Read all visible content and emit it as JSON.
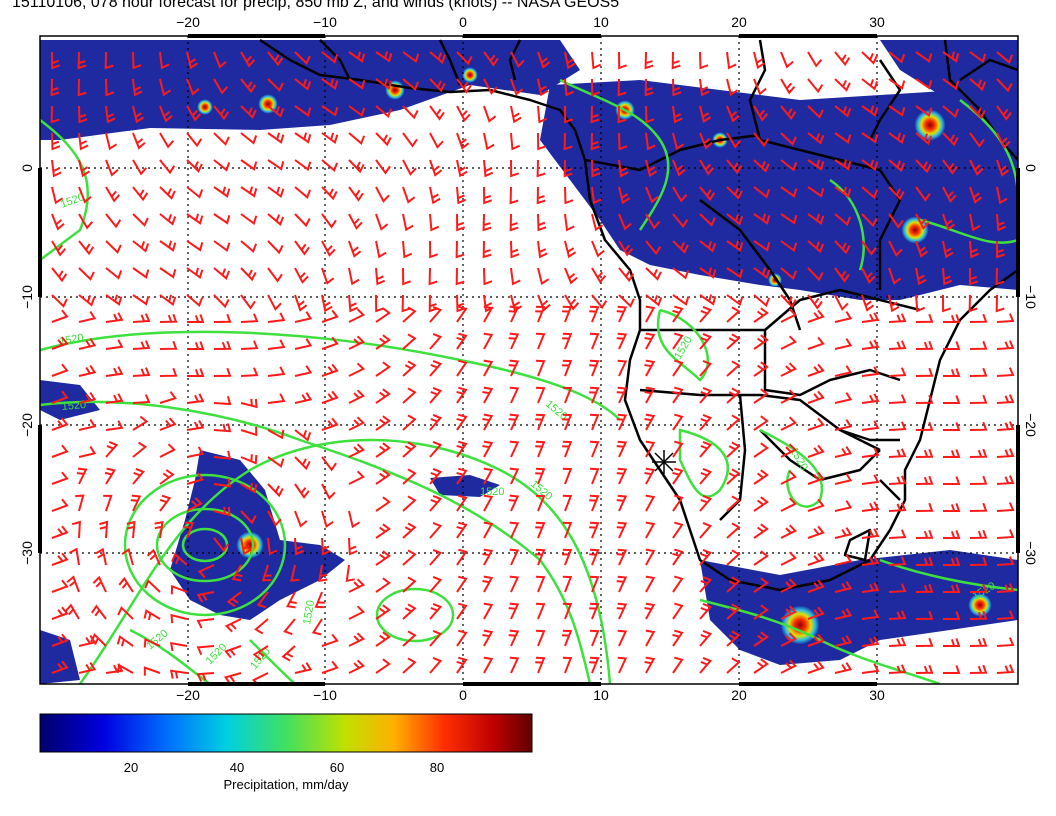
{
  "title": "15110106, 078 hour forecast for precip, 850 mb Z, and winds (knots) -- NASA GEOS5",
  "map": {
    "lon_ticks_bottom": [
      "−20",
      "−10",
      "0",
      "10",
      "20",
      "30"
    ],
    "lon_ticks_top": [
      "−20",
      "−10",
      "0",
      "10",
      "20",
      "30"
    ],
    "lat_ticks": [
      "0",
      "−10",
      "−20",
      "−30"
    ],
    "contour_labels": [
      "1520",
      "1520",
      "1520",
      "1520",
      "1520",
      "1520",
      "1520",
      "1520",
      "1520",
      "1520",
      "1520",
      "1520",
      "1520"
    ],
    "colors": {
      "contour": "#3ee03e",
      "barb": "#ff1a1a",
      "coast": "#000000",
      "precip_low": "#1a1a9c",
      "precip_high": "#8b0000"
    }
  },
  "colorbar": {
    "tick_labels": [
      "20",
      "40",
      "60",
      "80"
    ],
    "label": "Precipitation, mm/day",
    "colors": [
      "#00008b",
      "#0000ff",
      "#0080ff",
      "#00e0e0",
      "#40e040",
      "#e0e000",
      "#ff8000",
      "#ff0000",
      "#8b0000"
    ]
  }
}
